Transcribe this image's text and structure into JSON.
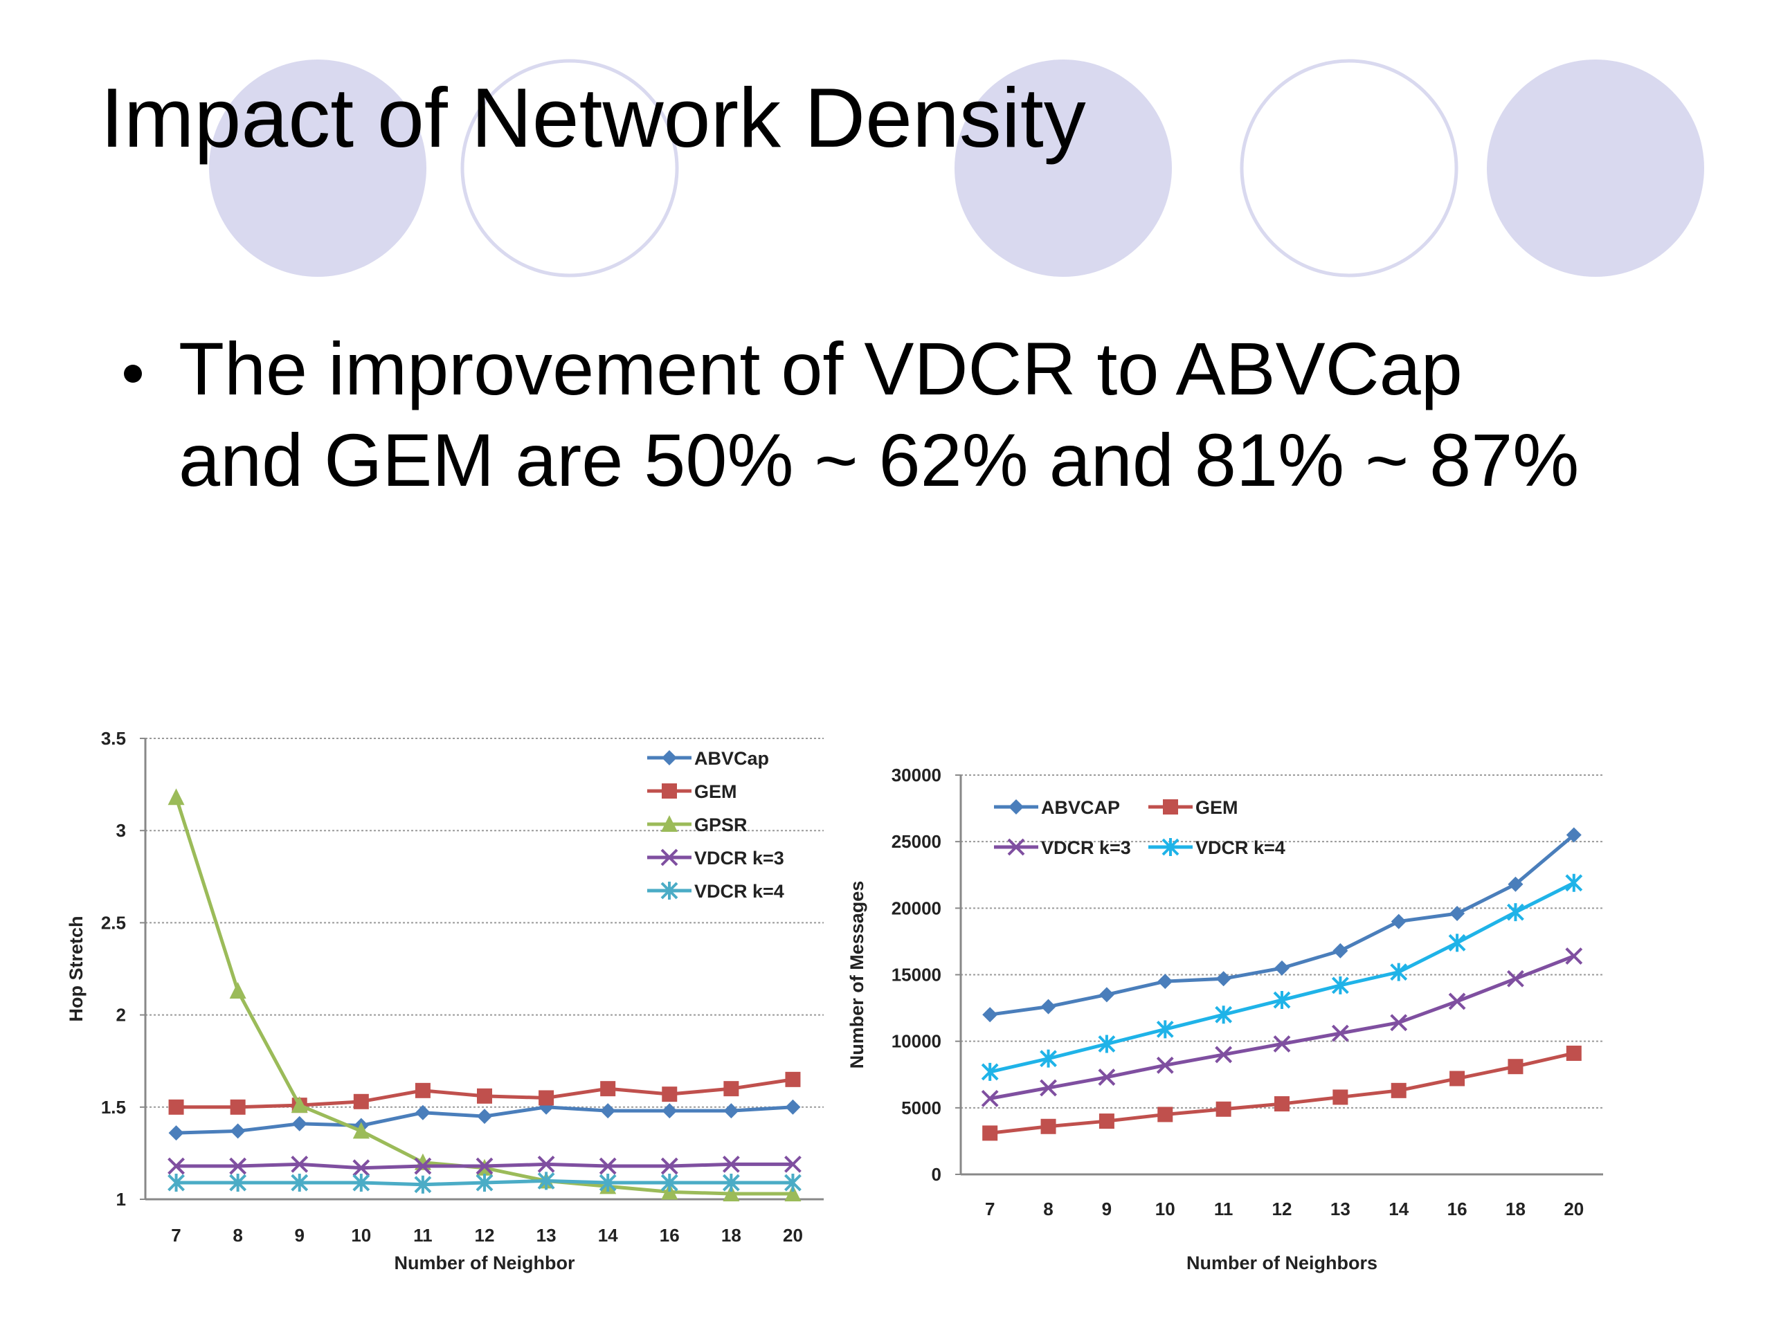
{
  "slide": {
    "title": "Impact of Network Density",
    "bullets": [
      "The improvement of VDCR to ABVCap",
      "and GEM are 50% ~ 62% and 81% ~ 87%"
    ]
  },
  "chart_data": [
    {
      "type": "line",
      "ylabel": "Hop Stretch",
      "xlabel": "Number of Neighbor",
      "categories": [
        "7",
        "8",
        "9",
        "10",
        "11",
        "12",
        "13",
        "14",
        "16",
        "18",
        "20"
      ],
      "ylim": [
        1,
        3.5
      ],
      "yticks": [
        1,
        1.5,
        2,
        2.5,
        3,
        3.5
      ],
      "grid": true,
      "legend": "upper right",
      "legend_columns": 1,
      "series": [
        {
          "name": "ABVCap",
          "color": "#4a7ebb",
          "marker": "diamond",
          "values": [
            1.36,
            1.37,
            1.41,
            1.4,
            1.47,
            1.45,
            1.5,
            1.48,
            1.48,
            1.48,
            1.5
          ]
        },
        {
          "name": "GEM",
          "color": "#c0504d",
          "marker": "square",
          "values": [
            1.5,
            1.5,
            1.51,
            1.53,
            1.59,
            1.56,
            1.55,
            1.6,
            1.57,
            1.6,
            1.65
          ]
        },
        {
          "name": "GPSR",
          "color": "#9bbb59",
          "marker": "triangle",
          "values": [
            3.18,
            2.13,
            1.51,
            1.37,
            1.2,
            1.17,
            1.1,
            1.07,
            1.04,
            1.03,
            1.03
          ]
        },
        {
          "name": "VDCR k=3",
          "color": "#7f4fa0",
          "marker": "x",
          "values": [
            1.18,
            1.18,
            1.19,
            1.17,
            1.18,
            1.18,
            1.19,
            1.18,
            1.18,
            1.19,
            1.19
          ]
        },
        {
          "name": "VDCR k=4",
          "color": "#4bacc6",
          "marker": "star",
          "values": [
            1.09,
            1.09,
            1.09,
            1.09,
            1.08,
            1.09,
            1.1,
            1.09,
            1.09,
            1.09,
            1.09
          ]
        }
      ]
    },
    {
      "type": "line",
      "ylabel": "Number of Messages",
      "xlabel": "Number of Neighbors",
      "categories": [
        "7",
        "8",
        "9",
        "10",
        "11",
        "12",
        "13",
        "14",
        "16",
        "18",
        "20"
      ],
      "ylim": [
        0,
        30000
      ],
      "yticks": [
        0,
        5000,
        10000,
        15000,
        20000,
        25000,
        30000
      ],
      "grid": true,
      "legend": "upper left",
      "legend_columns": 2,
      "series": [
        {
          "name": "ABVCAP",
          "color": "#4a7ebb",
          "marker": "diamond",
          "values": [
            12000,
            12600,
            13500,
            14500,
            14700,
            15500,
            16800,
            19000,
            19600,
            21800,
            25500
          ]
        },
        {
          "name": "GEM",
          "color": "#c0504d",
          "marker": "square",
          "values": [
            3100,
            3600,
            4000,
            4500,
            4900,
            5300,
            5800,
            6300,
            7200,
            8100,
            9100
          ]
        },
        {
          "name": "VDCR k=3",
          "color": "#7f4fa0",
          "marker": "x",
          "values": [
            5700,
            6500,
            7300,
            8200,
            9000,
            9800,
            10600,
            11400,
            13000,
            14700,
            16400
          ]
        },
        {
          "name": "VDCR k=4",
          "color": "#1fb3e8",
          "marker": "star",
          "values": [
            7700,
            8700,
            9800,
            10900,
            12000,
            13100,
            14200,
            15200,
            17400,
            19700,
            21900
          ]
        }
      ]
    }
  ]
}
